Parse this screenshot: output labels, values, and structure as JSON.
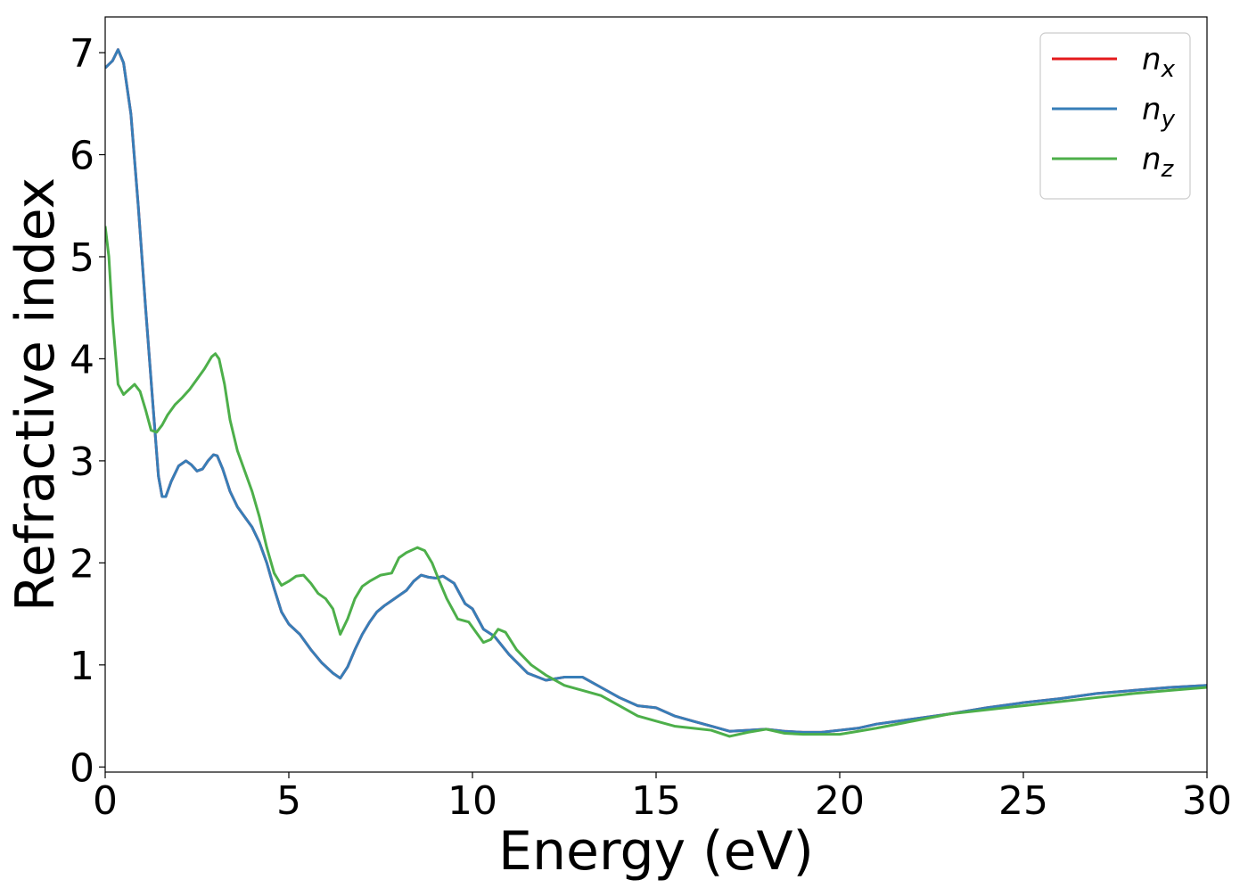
{
  "chart_data": {
    "type": "line",
    "xlabel": "Energy (eV)",
    "ylabel": "Refractive index",
    "xlim": [
      0,
      30
    ],
    "ylim": [
      -0.05,
      7.35
    ],
    "xticks": [
      0,
      5,
      10,
      15,
      20,
      25,
      30
    ],
    "yticks": [
      0,
      1,
      2,
      3,
      4,
      5,
      6,
      7
    ],
    "grid": false,
    "legend_position": "top-right",
    "series": [
      {
        "name": "n_x",
        "legend_base": "n",
        "legend_sub": "x",
        "color": "#e41a1c",
        "x": [
          0,
          0.2,
          0.35,
          0.5,
          0.7,
          0.9,
          1.1,
          1.3,
          1.45,
          1.55,
          1.65,
          1.8,
          2.0,
          2.2,
          2.35,
          2.5,
          2.65,
          2.8,
          2.95,
          3.05,
          3.2,
          3.4,
          3.6,
          3.8,
          4.0,
          4.2,
          4.4,
          4.6,
          4.8,
          5.0,
          5.3,
          5.6,
          5.9,
          6.2,
          6.4,
          6.6,
          6.8,
          7.0,
          7.2,
          7.4,
          7.6,
          7.8,
          8.0,
          8.2,
          8.4,
          8.6,
          8.8,
          9.0,
          9.2,
          9.5,
          9.8,
          10.0,
          10.3,
          10.6,
          11.0,
          11.5,
          12.0,
          12.5,
          13.0,
          13.5,
          14.0,
          14.5,
          15.0,
          15.5,
          16.0,
          16.5,
          17.0,
          17.5,
          18.0,
          18.5,
          19.0,
          19.5,
          20.0,
          20.5,
          21.0,
          22.0,
          23.0,
          24.0,
          25.0,
          26.0,
          27.0,
          28.0,
          29.0,
          30.0
        ],
        "y": [
          6.85,
          6.92,
          7.03,
          6.9,
          6.4,
          5.5,
          4.5,
          3.55,
          2.85,
          2.65,
          2.65,
          2.8,
          2.95,
          3.0,
          2.96,
          2.9,
          2.92,
          3.0,
          3.06,
          3.05,
          2.92,
          2.7,
          2.55,
          2.45,
          2.35,
          2.2,
          2.0,
          1.75,
          1.52,
          1.4,
          1.3,
          1.15,
          1.02,
          0.92,
          0.87,
          0.98,
          1.15,
          1.3,
          1.42,
          1.52,
          1.58,
          1.63,
          1.68,
          1.73,
          1.82,
          1.88,
          1.86,
          1.85,
          1.87,
          1.8,
          1.6,
          1.55,
          1.35,
          1.28,
          1.1,
          0.92,
          0.85,
          0.88,
          0.88,
          0.78,
          0.68,
          0.6,
          0.58,
          0.5,
          0.45,
          0.4,
          0.35,
          0.36,
          0.37,
          0.35,
          0.34,
          0.34,
          0.36,
          0.38,
          0.42,
          0.47,
          0.52,
          0.58,
          0.63,
          0.67,
          0.72,
          0.75,
          0.78,
          0.8
        ]
      },
      {
        "name": "n_y",
        "legend_base": "n",
        "legend_sub": "y",
        "color": "#377eb8",
        "x": [
          0,
          0.2,
          0.35,
          0.5,
          0.7,
          0.9,
          1.1,
          1.3,
          1.45,
          1.55,
          1.65,
          1.8,
          2.0,
          2.2,
          2.35,
          2.5,
          2.65,
          2.8,
          2.95,
          3.05,
          3.2,
          3.4,
          3.6,
          3.8,
          4.0,
          4.2,
          4.4,
          4.6,
          4.8,
          5.0,
          5.3,
          5.6,
          5.9,
          6.2,
          6.4,
          6.6,
          6.8,
          7.0,
          7.2,
          7.4,
          7.6,
          7.8,
          8.0,
          8.2,
          8.4,
          8.6,
          8.8,
          9.0,
          9.2,
          9.5,
          9.8,
          10.0,
          10.3,
          10.6,
          11.0,
          11.5,
          12.0,
          12.5,
          13.0,
          13.5,
          14.0,
          14.5,
          15.0,
          15.5,
          16.0,
          16.5,
          17.0,
          17.5,
          18.0,
          18.5,
          19.0,
          19.5,
          20.0,
          20.5,
          21.0,
          22.0,
          23.0,
          24.0,
          25.0,
          26.0,
          27.0,
          28.0,
          29.0,
          30.0
        ],
        "y": [
          6.85,
          6.92,
          7.03,
          6.9,
          6.4,
          5.5,
          4.5,
          3.55,
          2.85,
          2.65,
          2.65,
          2.8,
          2.95,
          3.0,
          2.96,
          2.9,
          2.92,
          3.0,
          3.06,
          3.05,
          2.92,
          2.7,
          2.55,
          2.45,
          2.35,
          2.2,
          2.0,
          1.75,
          1.52,
          1.4,
          1.3,
          1.15,
          1.02,
          0.92,
          0.87,
          0.98,
          1.15,
          1.3,
          1.42,
          1.52,
          1.58,
          1.63,
          1.68,
          1.73,
          1.82,
          1.88,
          1.86,
          1.85,
          1.87,
          1.8,
          1.6,
          1.55,
          1.35,
          1.28,
          1.1,
          0.92,
          0.85,
          0.88,
          0.88,
          0.78,
          0.68,
          0.6,
          0.58,
          0.5,
          0.45,
          0.4,
          0.35,
          0.36,
          0.37,
          0.35,
          0.34,
          0.34,
          0.36,
          0.38,
          0.42,
          0.47,
          0.52,
          0.58,
          0.63,
          0.67,
          0.72,
          0.75,
          0.78,
          0.8
        ]
      },
      {
        "name": "n_z",
        "legend_base": "n",
        "legend_sub": "z",
        "color": "#4daf4a",
        "x": [
          0,
          0.1,
          0.2,
          0.35,
          0.5,
          0.65,
          0.8,
          0.95,
          1.1,
          1.25,
          1.4,
          1.55,
          1.7,
          1.9,
          2.1,
          2.3,
          2.5,
          2.7,
          2.9,
          3.0,
          3.1,
          3.25,
          3.4,
          3.6,
          3.8,
          4.0,
          4.2,
          4.4,
          4.6,
          4.8,
          5.0,
          5.2,
          5.4,
          5.6,
          5.8,
          6.0,
          6.2,
          6.4,
          6.6,
          6.8,
          7.0,
          7.2,
          7.5,
          7.8,
          8.0,
          8.2,
          8.5,
          8.7,
          8.9,
          9.1,
          9.3,
          9.6,
          9.9,
          10.1,
          10.3,
          10.5,
          10.7,
          10.9,
          11.2,
          11.6,
          12.0,
          12.5,
          13.0,
          13.5,
          14.0,
          14.5,
          15.0,
          15.5,
          16.0,
          16.5,
          17.0,
          17.5,
          18.0,
          18.5,
          19.0,
          19.5,
          20.0,
          20.5,
          21.0,
          22.0,
          23.0,
          24.0,
          25.0,
          26.0,
          27.0,
          28.0,
          29.0,
          30.0
        ],
        "y": [
          5.3,
          5.0,
          4.4,
          3.75,
          3.65,
          3.7,
          3.75,
          3.68,
          3.5,
          3.3,
          3.28,
          3.35,
          3.45,
          3.55,
          3.62,
          3.7,
          3.8,
          3.9,
          4.02,
          4.05,
          4.0,
          3.75,
          3.4,
          3.1,
          2.9,
          2.7,
          2.45,
          2.15,
          1.9,
          1.78,
          1.82,
          1.87,
          1.88,
          1.8,
          1.7,
          1.65,
          1.55,
          1.3,
          1.45,
          1.65,
          1.77,
          1.82,
          1.88,
          1.9,
          2.05,
          2.1,
          2.15,
          2.12,
          2.0,
          1.82,
          1.65,
          1.45,
          1.42,
          1.32,
          1.22,
          1.25,
          1.35,
          1.32,
          1.15,
          1.0,
          0.9,
          0.8,
          0.75,
          0.7,
          0.6,
          0.5,
          0.45,
          0.4,
          0.38,
          0.36,
          0.3,
          0.34,
          0.37,
          0.33,
          0.32,
          0.32,
          0.32,
          0.35,
          0.38,
          0.45,
          0.52,
          0.56,
          0.6,
          0.64,
          0.68,
          0.72,
          0.75,
          0.78
        ]
      }
    ]
  }
}
